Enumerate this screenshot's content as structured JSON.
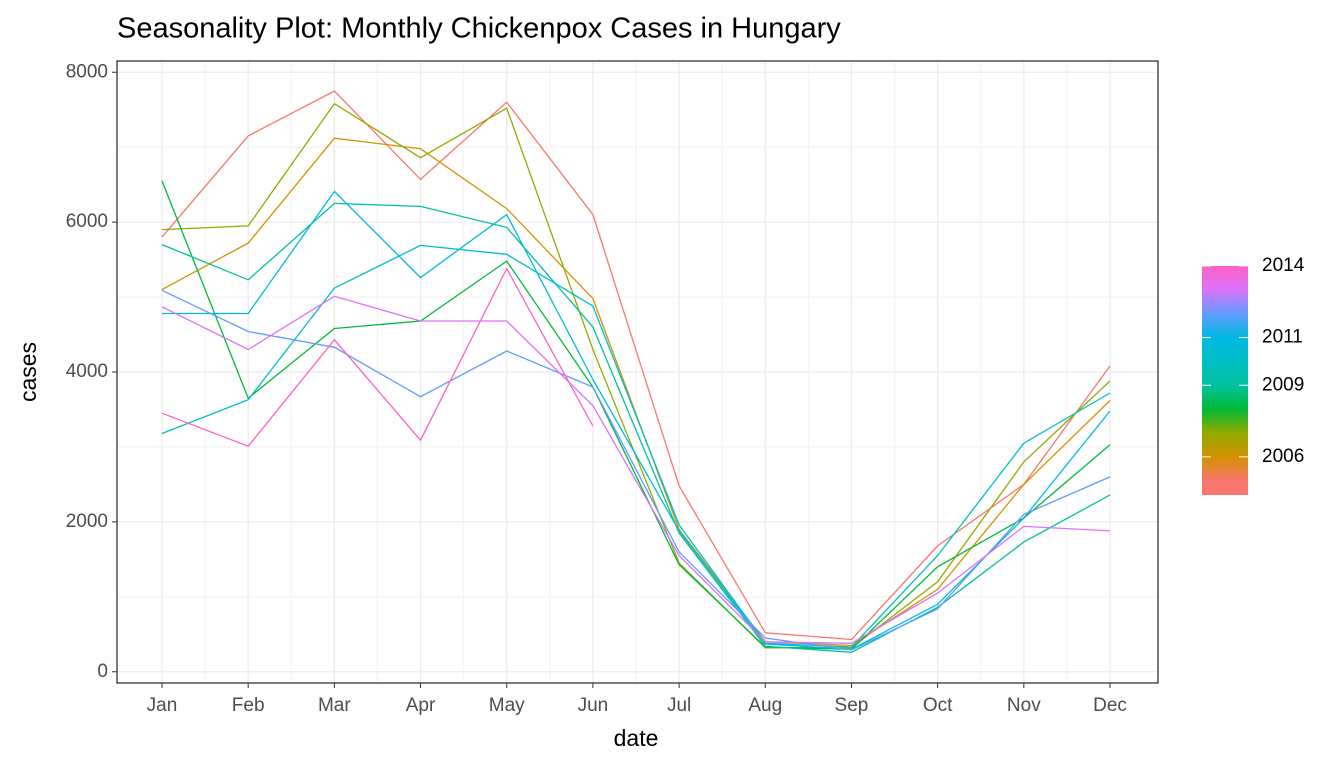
{
  "chart_data": {
    "type": "line",
    "title": "Seasonality Plot: Monthly Chickenpox Cases in Hungary",
    "x_label": "date",
    "y_label": "cases",
    "categories": [
      "Jan",
      "Feb",
      "Mar",
      "Apr",
      "May",
      "Jun",
      "Jul",
      "Aug",
      "Sep",
      "Oct",
      "Nov",
      "Dec"
    ],
    "ylim": [
      -150,
      8150
    ],
    "yticks": [
      0,
      2000,
      4000,
      6000,
      8000
    ],
    "grid": true,
    "legend": {
      "position": "right",
      "range": [
        2004.4,
        2014
      ],
      "ticks": [
        2006,
        2009,
        2011,
        2014
      ]
    },
    "series": [
      {
        "year": 2005,
        "color": "#F8766D",
        "values": [
          5800,
          7150,
          7750,
          6570,
          7600,
          6100,
          2480,
          520,
          430,
          1680,
          2500,
          4080
        ]
      },
      {
        "year": 2006,
        "color": "#D39200",
        "values": [
          5100,
          5720,
          7120,
          6980,
          6180,
          4980,
          1900,
          400,
          350,
          1100,
          2500,
          3620
        ]
      },
      {
        "year": 2007,
        "color": "#93AA00",
        "values": [
          5900,
          5950,
          7580,
          6860,
          7520,
          4300,
          1450,
          320,
          320,
          1200,
          2800,
          3880
        ]
      },
      {
        "year": 2008,
        "color": "#00BA38",
        "values": [
          6550,
          3650,
          4580,
          4680,
          5480,
          3800,
          1430,
          330,
          300,
          1400,
          2050,
          3030
        ]
      },
      {
        "year": 2009,
        "color": "#00C19F",
        "values": [
          5700,
          5230,
          6250,
          6210,
          5930,
          4600,
          1850,
          340,
          260,
          860,
          1730,
          2360
        ]
      },
      {
        "year": 2010,
        "color": "#00BFC4",
        "values": [
          3180,
          3630,
          5120,
          5690,
          5570,
          4880,
          1960,
          380,
          330,
          1550,
          3050,
          3720
        ]
      },
      {
        "year": 2011,
        "color": "#00B9E3",
        "values": [
          4780,
          4780,
          6410,
          5260,
          6100,
          3900,
          1880,
          370,
          300,
          900,
          2050,
          3480
        ]
      },
      {
        "year": 2012,
        "color": "#619CFF",
        "values": [
          5090,
          4540,
          4330,
          3670,
          4280,
          3800,
          1600,
          450,
          290,
          840,
          2100,
          2600
        ]
      },
      {
        "year": 2013,
        "color": "#DB72FB",
        "values": [
          4870,
          4300,
          5010,
          4680,
          4680,
          3550,
          1550,
          400,
          380,
          1050,
          1940,
          1880
        ]
      },
      {
        "year": 2014,
        "color": "#FF61C3",
        "values": [
          3450,
          3010,
          4430,
          3090,
          5380,
          3280,
          null,
          null,
          null,
          null,
          null,
          null
        ]
      }
    ]
  }
}
